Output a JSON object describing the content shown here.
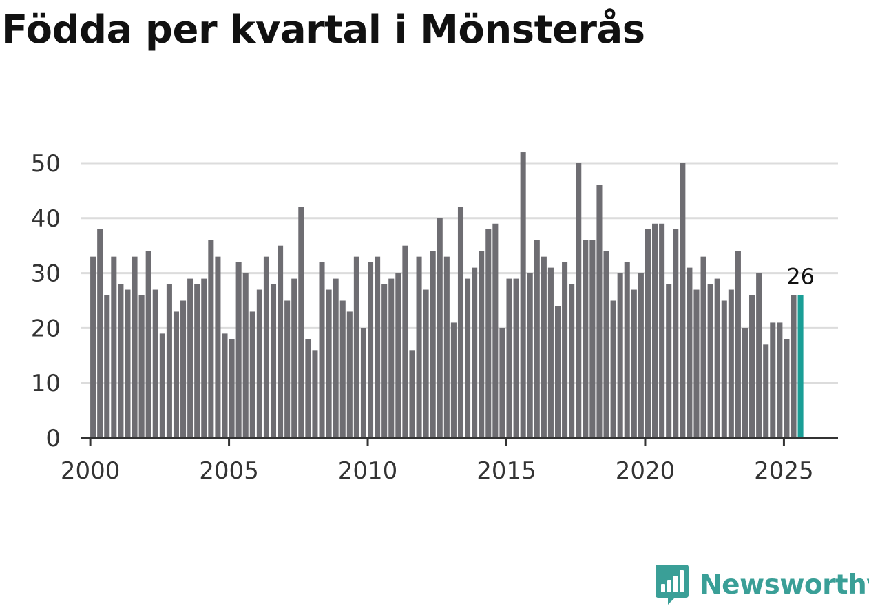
{
  "title": "Födda per kvartal i Mönsterås",
  "brand": {
    "name": "Newsworthy",
    "icon": "newsworthy-logo-icon"
  },
  "colors": {
    "bar": "#6e6d72",
    "highlight": "#1a9e96",
    "grid": "#dcdcdc",
    "axis": "#333333",
    "text": "#333333",
    "brand": "#3a9f97"
  },
  "chart_data": {
    "type": "bar",
    "title": "Födda per kvartal i Mönsterås",
    "xlabel": "",
    "ylabel": "",
    "x_start": 2000,
    "quarters_per_year": 4,
    "xlim": [
      1999.65,
      2026.95
    ],
    "ylim": [
      0,
      50
    ],
    "yticks": [
      0,
      10,
      20,
      30,
      40,
      50
    ],
    "xticks": [
      2000,
      2005,
      2010,
      2015,
      2020,
      2025
    ],
    "grid": true,
    "highlight_last": true,
    "last_label": "26",
    "values": [
      33,
      38,
      26,
      33,
      28,
      27,
      33,
      26,
      34,
      27,
      19,
      28,
      23,
      25,
      29,
      28,
      29,
      36,
      33,
      19,
      18,
      32,
      30,
      23,
      27,
      33,
      28,
      35,
      25,
      29,
      42,
      18,
      16,
      32,
      27,
      29,
      25,
      23,
      33,
      20,
      32,
      33,
      28,
      29,
      30,
      35,
      16,
      33,
      27,
      34,
      40,
      33,
      21,
      42,
      29,
      31,
      34,
      38,
      39,
      20,
      29,
      29,
      52,
      30,
      36,
      33,
      31,
      24,
      32,
      28,
      50,
      36,
      36,
      46,
      34,
      25,
      30,
      32,
      27,
      30,
      38,
      39,
      39,
      28,
      38,
      50,
      31,
      27,
      33,
      28,
      29,
      25,
      27,
      34,
      20,
      26,
      30,
      17,
      21,
      21,
      18,
      26,
      26
    ]
  }
}
